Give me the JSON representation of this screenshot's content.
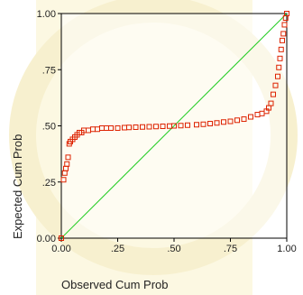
{
  "chart_data": {
    "type": "scatter",
    "title": "",
    "xlabel": "Observed Cum Prob",
    "ylabel": "Expected Cum Prob",
    "xlim": [
      0,
      1
    ],
    "ylim": [
      0,
      1
    ],
    "x_ticks": [
      {
        "value": 0.0,
        "label": "0.00"
      },
      {
        "value": 0.25,
        "label": ".25"
      },
      {
        "value": 0.5,
        "label": ".50"
      },
      {
        "value": 0.75,
        "label": ".75"
      },
      {
        "value": 1.0,
        "label": "1.00"
      }
    ],
    "y_ticks": [
      {
        "value": 0.0,
        "label": "0.00"
      },
      {
        "value": 0.25,
        "label": ".25"
      },
      {
        "value": 0.5,
        "label": ".50"
      },
      {
        "value": 0.75,
        "label": ".75"
      },
      {
        "value": 1.0,
        "label": "1.00"
      }
    ],
    "grid": false,
    "reference_line": {
      "from": [
        0,
        0
      ],
      "to": [
        1,
        1
      ],
      "color": "#22cc22"
    },
    "series": [
      {
        "marker": "open-square",
        "color": "#dd2200",
        "points": [
          [
            0.0,
            0.0
          ],
          [
            0.01,
            0.26
          ],
          [
            0.015,
            0.29
          ],
          [
            0.02,
            0.31
          ],
          [
            0.025,
            0.33
          ],
          [
            0.03,
            0.36
          ],
          [
            0.035,
            0.42
          ],
          [
            0.04,
            0.43
          ],
          [
            0.05,
            0.44
          ],
          [
            0.06,
            0.45
          ],
          [
            0.07,
            0.46
          ],
          [
            0.08,
            0.47
          ],
          [
            0.09,
            0.47
          ],
          [
            0.1,
            0.48
          ],
          [
            0.12,
            0.48
          ],
          [
            0.14,
            0.485
          ],
          [
            0.16,
            0.485
          ],
          [
            0.18,
            0.49
          ],
          [
            0.2,
            0.49
          ],
          [
            0.22,
            0.49
          ],
          [
            0.25,
            0.49
          ],
          [
            0.28,
            0.492
          ],
          [
            0.3,
            0.493
          ],
          [
            0.33,
            0.494
          ],
          [
            0.36,
            0.495
          ],
          [
            0.39,
            0.496
          ],
          [
            0.42,
            0.497
          ],
          [
            0.45,
            0.498
          ],
          [
            0.48,
            0.499
          ],
          [
            0.5,
            0.5
          ],
          [
            0.53,
            0.501
          ],
          [
            0.56,
            0.503
          ],
          [
            0.6,
            0.505
          ],
          [
            0.63,
            0.507
          ],
          [
            0.66,
            0.51
          ],
          [
            0.69,
            0.513
          ],
          [
            0.72,
            0.517
          ],
          [
            0.75,
            0.52
          ],
          [
            0.78,
            0.525
          ],
          [
            0.81,
            0.53
          ],
          [
            0.84,
            0.54
          ],
          [
            0.87,
            0.55
          ],
          [
            0.89,
            0.555
          ],
          [
            0.91,
            0.565
          ],
          [
            0.92,
            0.58
          ],
          [
            0.93,
            0.6
          ],
          [
            0.94,
            0.64
          ],
          [
            0.95,
            0.68
          ],
          [
            0.96,
            0.72
          ],
          [
            0.965,
            0.76
          ],
          [
            0.97,
            0.8
          ],
          [
            0.975,
            0.84
          ],
          [
            0.98,
            0.88
          ],
          [
            0.985,
            0.91
          ],
          [
            0.99,
            0.95
          ],
          [
            0.995,
            0.98
          ],
          [
            1.0,
            1.0
          ]
        ]
      }
    ]
  }
}
